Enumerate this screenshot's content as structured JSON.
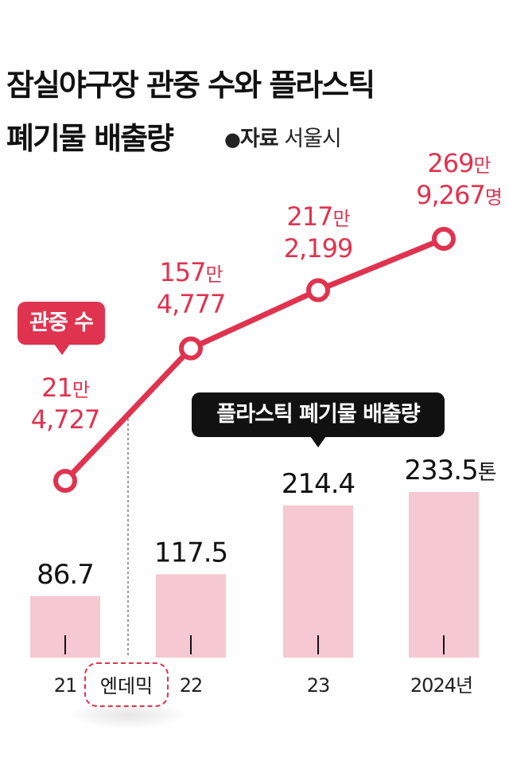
{
  "title_line1": "잠실야구장 관중 수와 플라스틱",
  "title_line2": "폐기물 배출량",
  "source": {
    "bullet": "●",
    "label": "자료",
    "org": "서울시"
  },
  "badges": {
    "attendance": "관중 수",
    "waste": "플라스틱 폐기물 배출량"
  },
  "pandemic_label": "엔데믹",
  "colors": {
    "line": "#e0334f",
    "bar": "#f6c8d2",
    "text_red": "#e0334f",
    "text_dark": "#111111"
  },
  "chart_data": {
    "type": "bar+line",
    "categories": [
      "21",
      "22",
      "23",
      "2024"
    ],
    "x_tick_labels": [
      "21",
      "22",
      "23",
      "2024년"
    ],
    "series": [
      {
        "name": "관중 수",
        "type": "line",
        "values": [
          214727,
          1574777,
          2172199,
          2699267
        ],
        "labels_top": [
          "21만",
          "157만",
          "217만",
          "269만"
        ],
        "labels_bottom": [
          "4,727",
          "4,777",
          "2,199",
          "9,267명"
        ]
      },
      {
        "name": "플라스틱 폐기물 배출량",
        "type": "bar",
        "values": [
          86.7,
          117.5,
          214.4,
          233.5
        ],
        "labels": [
          "86.7",
          "117.5",
          "214.4",
          "233.5톤"
        ]
      }
    ],
    "annotations": [
      "엔데믹"
    ],
    "grid": false
  }
}
